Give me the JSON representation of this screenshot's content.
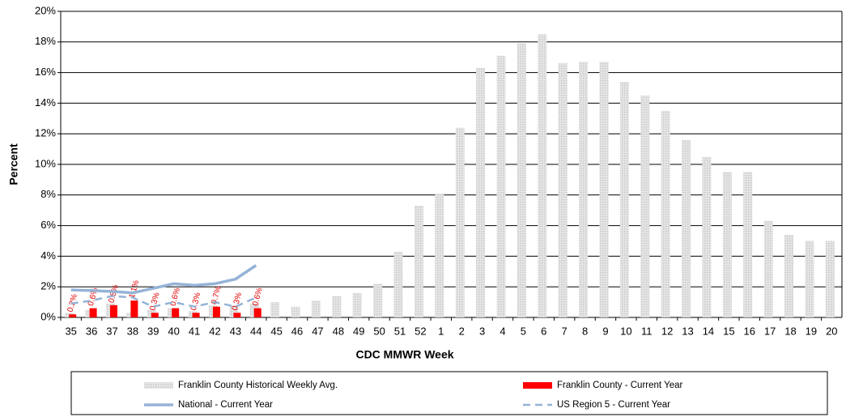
{
  "chart_data": {
    "type": "bar",
    "x_label": "CDC MMWR Week",
    "y_label": "Percent",
    "categories": [
      "35",
      "36",
      "37",
      "38",
      "39",
      "40",
      "41",
      "42",
      "43",
      "44",
      "45",
      "46",
      "47",
      "48",
      "49",
      "50",
      "51",
      "52",
      "1",
      "2",
      "3",
      "4",
      "5",
      "6",
      "7",
      "8",
      "9",
      "10",
      "11",
      "12",
      "13",
      "14",
      "15",
      "16",
      "17",
      "18",
      "19",
      "20"
    ],
    "ylim": [
      0,
      20
    ],
    "yticks": [
      {
        "value": 0,
        "label": "0%"
      },
      {
        "value": 2,
        "label": "2%"
      },
      {
        "value": 4,
        "label": "4%"
      },
      {
        "value": 6,
        "label": "6%"
      },
      {
        "value": 8,
        "label": "8%"
      },
      {
        "value": 10,
        "label": "10%"
      },
      {
        "value": 12,
        "label": "12%"
      },
      {
        "value": 14,
        "label": "14%"
      },
      {
        "value": 16,
        "label": "16%"
      },
      {
        "value": 18,
        "label": "18%"
      },
      {
        "value": 20,
        "label": "20%"
      }
    ],
    "grid": true,
    "series": [
      {
        "name": "Franklin County Historical Weekly Avg.",
        "type": "bar",
        "color": "#d4d4d4",
        "values": [
          0.3,
          0.5,
          0.9,
          0.3,
          0.5,
          0.6,
          0.4,
          0.8,
          0.8,
          0.9,
          1.0,
          0.7,
          1.1,
          1.4,
          1.6,
          2.2,
          4.3,
          7.3,
          8.1,
          12.4,
          16.3,
          17.1,
          17.9,
          18.5,
          16.6,
          16.7,
          16.7,
          15.4,
          14.5,
          13.5,
          11.6,
          10.5,
          9.5,
          9.5,
          6.3,
          5.4,
          5.0,
          5.0
        ]
      },
      {
        "name": "Franklin County - Current Year",
        "type": "bar",
        "color": "#ff0000",
        "values": [
          0.2,
          0.6,
          0.8,
          1.1,
          0.3,
          0.6,
          0.3,
          0.7,
          0.3,
          0.6,
          null,
          null,
          null,
          null,
          null,
          null,
          null,
          null,
          null,
          null,
          null,
          null,
          null,
          null,
          null,
          null,
          null,
          null,
          null,
          null,
          null,
          null,
          null,
          null,
          null,
          null,
          null,
          null
        ],
        "value_labels": [
          "0.2%",
          "0.6%",
          "0.8%",
          "1.1%",
          "0.3%",
          "0.6%",
          "0.3%",
          "0.7%",
          "0.3%",
          "0.6%",
          null,
          null,
          null,
          null,
          null,
          null,
          null,
          null,
          null,
          null,
          null,
          null,
          null,
          null,
          null,
          null,
          null,
          null,
          null,
          null,
          null,
          null,
          null,
          null,
          null,
          null,
          null,
          null
        ]
      },
      {
        "name": "National - Current Year",
        "type": "line",
        "color": "#95b3d7",
        "values": [
          1.8,
          1.75,
          1.7,
          1.6,
          1.9,
          2.2,
          2.1,
          2.2,
          2.5,
          3.4,
          null,
          null,
          null,
          null,
          null,
          null,
          null,
          null,
          null,
          null,
          null,
          null,
          null,
          null,
          null,
          null,
          null,
          null,
          null,
          null,
          null,
          null,
          null,
          null,
          null,
          null,
          null,
          null
        ]
      },
      {
        "name": "US Region 5 - Current Year",
        "type": "line",
        "dashed": true,
        "color": "#95b3d7",
        "values": [
          0.9,
          1.1,
          1.4,
          1.3,
          0.7,
          1.0,
          0.7,
          1.0,
          0.7,
          1.3,
          null,
          null,
          null,
          null,
          null,
          null,
          null,
          null,
          null,
          null,
          null,
          null,
          null,
          null,
          null,
          null,
          null,
          null,
          null,
          null,
          null,
          null,
          null,
          null,
          null,
          null,
          null,
          null
        ]
      }
    ]
  }
}
